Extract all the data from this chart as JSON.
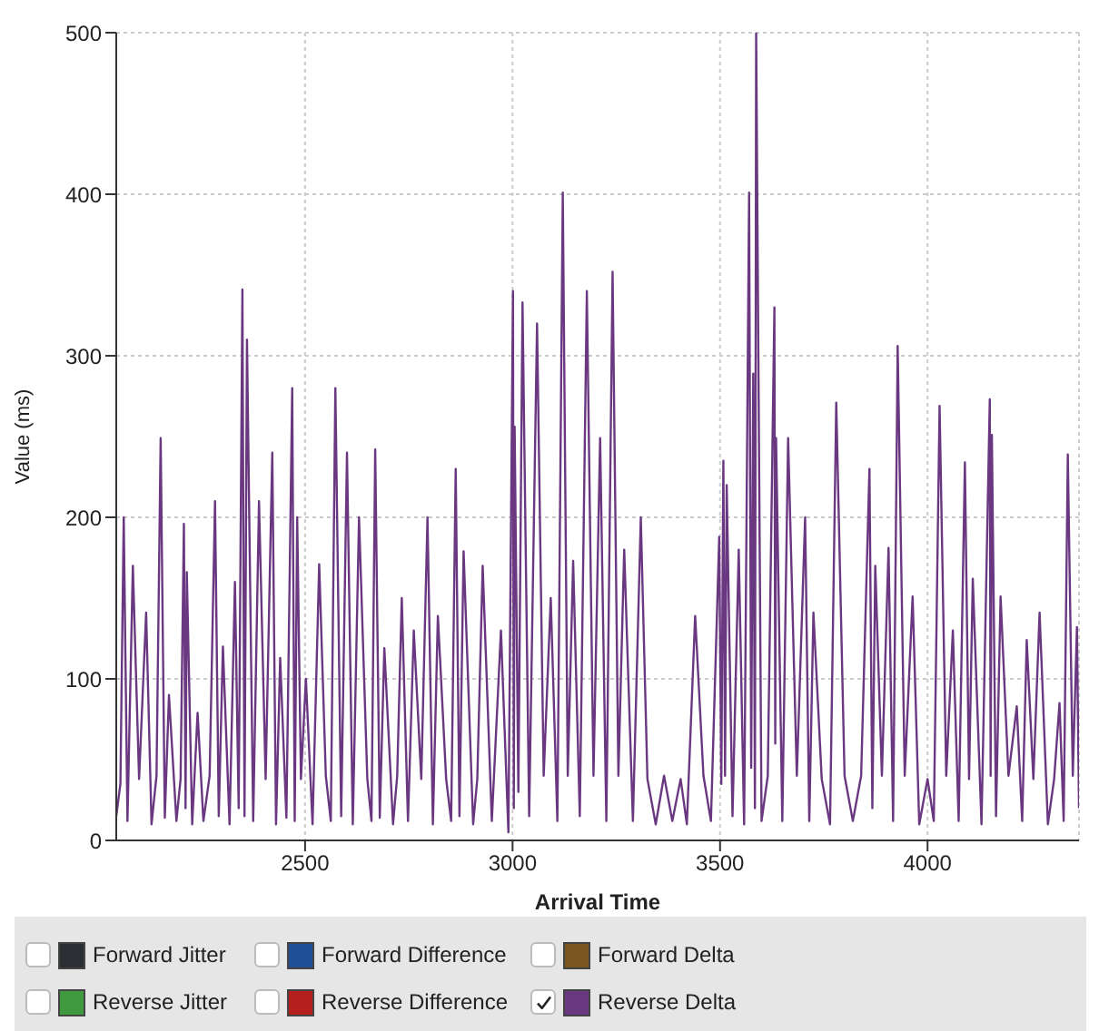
{
  "chart_data": {
    "type": "line",
    "xlabel": "Arrival Time",
    "ylabel": "Value (ms)",
    "xlim": [
      2045,
      4365
    ],
    "xticks": [
      2500,
      3000,
      3500,
      4000
    ],
    "ylim": [
      0,
      500
    ],
    "yticks": [
      0,
      100,
      200,
      300,
      400,
      500
    ],
    "grid": true,
    "legend": "bottom",
    "marker": "none",
    "line_style": "solid",
    "series": [
      {
        "name": "Forward Jitter",
        "color": "#2b2f33"
      },
      {
        "name": "Forward Difference",
        "color": "#1f4e96"
      },
      {
        "name": "Forward Delta",
        "color": "#7a5520"
      },
      {
        "name": "Reverse Jitter",
        "color": "#3f9a3f"
      },
      {
        "name": "Reverse Difference",
        "color": "#b5201f"
      },
      {
        "name": "Reverse Delta",
        "color": "#6a3880",
        "x": [
          2045,
          2055,
          2063,
          2072,
          2085,
          2100,
          2117,
          2130,
          2142,
          2152,
          2162,
          2172,
          2190,
          2200,
          2208,
          2212,
          2215,
          2228,
          2241,
          2255,
          2270,
          2283,
          2292,
          2302,
          2318,
          2331,
          2340,
          2349,
          2354,
          2360,
          2375,
          2389,
          2405,
          2421,
          2430,
          2440,
          2455,
          2469,
          2475,
          2481,
          2490,
          2502,
          2518,
          2534,
          2550,
          2562,
          2573,
          2587,
          2601,
          2615,
          2630,
          2650,
          2660,
          2669,
          2680,
          2691,
          2712,
          2722,
          2733,
          2748,
          2762,
          2780,
          2795,
          2808,
          2820,
          2840,
          2852,
          2863,
          2872,
          2882,
          2905,
          2915,
          2928,
          2950,
          2972,
          2990,
          3001,
          3003,
          3005,
          3014,
          3024,
          3040,
          3059,
          3075,
          3092,
          3108,
          3121,
          3133,
          3146,
          3162,
          3179,
          3195,
          3211,
          3226,
          3241,
          3255,
          3269,
          3290,
          3309,
          3325,
          3345,
          3365,
          3385,
          3405,
          3420,
          3440,
          3460,
          3478,
          3498,
          3503,
          3508,
          3512,
          3516,
          3530,
          3545,
          3558,
          3570,
          3575,
          3580,
          3584,
          3587,
          3600,
          3615,
          3631,
          3633,
          3635,
          3650,
          3664,
          3685,
          3705,
          3715,
          3725,
          3745,
          3765,
          3780,
          3800,
          3820,
          3840,
          3860,
          3867,
          3874,
          3890,
          3906,
          3917,
          3928,
          3945,
          3964,
          3980,
          4000,
          4015,
          4029,
          4045,
          4061,
          4075,
          4090,
          4100,
          4109,
          4130,
          4150,
          4152,
          4155,
          4165,
          4176,
          4195,
          4215,
          4228,
          4239,
          4255,
          4270,
          4290,
          4305,
          4318,
          4328,
          4338,
          4350,
          4360,
          4365
        ],
        "values": [
          15,
          35,
          200,
          12,
          170,
          38,
          141,
          10,
          40,
          249,
          14,
          90,
          12,
          38,
          196,
          20,
          166,
          10,
          79,
          12,
          40,
          210,
          15,
          120,
          10,
          160,
          20,
          341,
          15,
          310,
          12,
          210,
          38,
          240,
          10,
          113,
          14,
          280,
          12,
          200,
          38,
          100,
          10,
          171,
          40,
          12,
          280,
          15,
          240,
          10,
          200,
          38,
          12,
          242,
          14,
          119,
          10,
          40,
          150,
          12,
          130,
          38,
          200,
          10,
          139,
          38,
          12,
          230,
          15,
          179,
          10,
          38,
          170,
          12,
          130,
          5,
          340,
          20,
          256,
          30,
          333,
          15,
          320,
          40,
          150,
          12,
          401,
          40,
          173,
          15,
          340,
          40,
          249,
          12,
          352,
          40,
          180,
          12,
          200,
          38,
          10,
          40,
          12,
          38,
          10,
          139,
          40,
          12,
          188,
          35,
          235,
          40,
          220,
          15,
          180,
          10,
          401,
          45,
          289,
          20,
          500,
          12,
          40,
          330,
          60,
          249,
          12,
          249,
          40,
          200,
          12,
          141,
          38,
          10,
          271,
          40,
          12,
          40,
          230,
          20,
          170,
          40,
          181,
          12,
          306,
          40,
          151,
          10,
          38,
          12,
          269,
          40,
          130,
          12,
          234,
          38,
          162,
          10,
          273,
          40,
          251,
          15,
          151,
          40,
          83,
          12,
          124,
          38,
          141,
          10,
          38,
          85,
          12,
          239,
          40,
          132,
          20
        ]
      }
    ]
  }
}
